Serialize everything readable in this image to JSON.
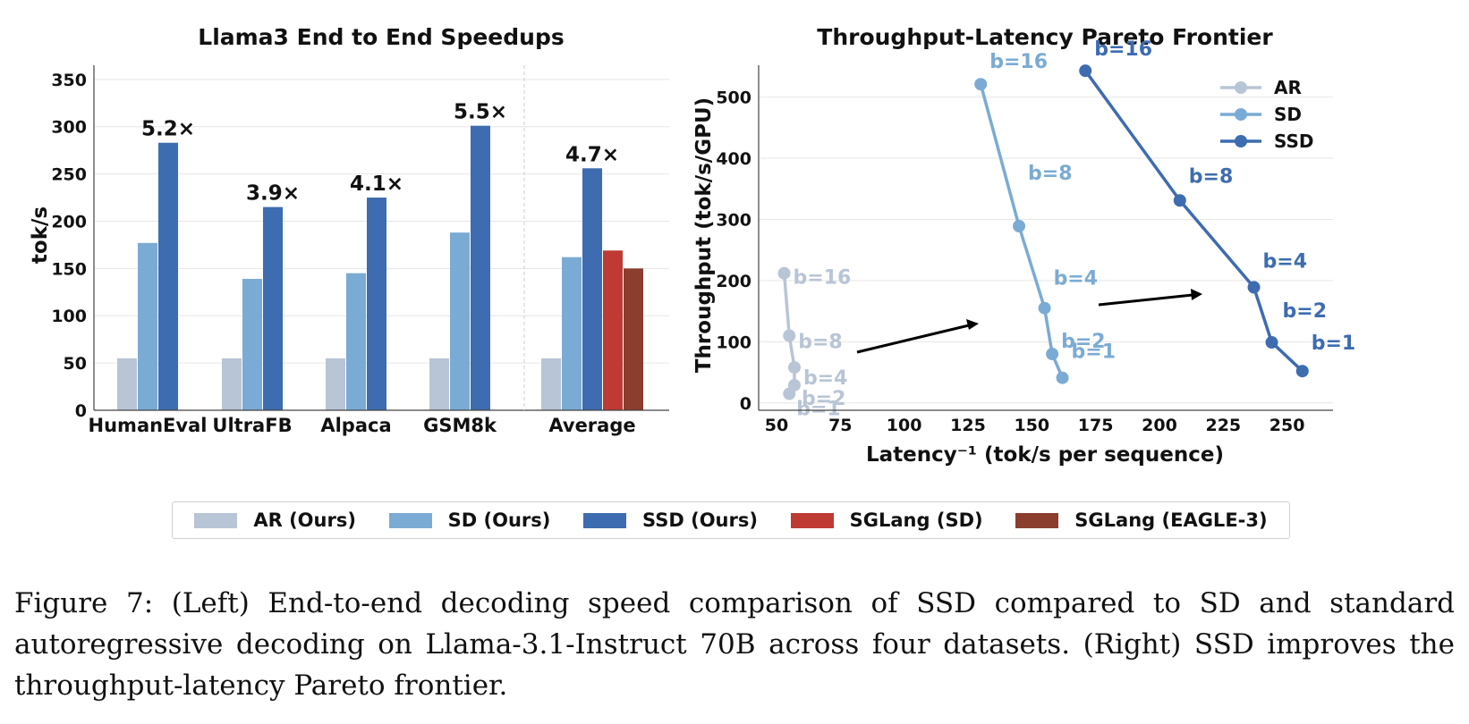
{
  "colors": {
    "ar": "#b8c5d6",
    "sd": "#7aabd4",
    "ssd": "#3d6cb0",
    "sglang_sd": "#bf3a33",
    "sglang_eagle3": "#8b3d2e",
    "arrow": "#000000",
    "grid": "#e6e6e6"
  },
  "chart_data": [
    {
      "type": "bar",
      "title": "Llama3 End to End Speedups",
      "xlabel": "",
      "ylabel": "tok/s",
      "ylim": [
        0,
        365
      ],
      "yticks": [
        0,
        50,
        100,
        150,
        200,
        250,
        300,
        350
      ],
      "categories": [
        "HumanEval",
        "UltraFB",
        "Alpaca",
        "GSM8k",
        "Average"
      ],
      "series": [
        {
          "name": "AR (Ours)",
          "color": "ar",
          "values": [
            55,
            55,
            55,
            55,
            55
          ]
        },
        {
          "name": "SD (Ours)",
          "color": "sd",
          "values": [
            177,
            139,
            145,
            188,
            162
          ]
        },
        {
          "name": "SSD (Ours)",
          "color": "ssd",
          "values": [
            283,
            215,
            225,
            301,
            256
          ]
        },
        {
          "name": "SGLang (SD)",
          "color": "sglang_sd",
          "values": [
            null,
            null,
            null,
            null,
            169
          ]
        },
        {
          "name": "SGLang (EAGLE-3)",
          "color": "sglang_eagle3",
          "values": [
            null,
            null,
            null,
            null,
            150
          ]
        }
      ],
      "annotations": [
        "5.2×",
        "3.9×",
        "4.1×",
        "5.5×",
        "4.7×"
      ],
      "grid": "horizontal",
      "legend": "bottom"
    },
    {
      "type": "line",
      "title": "Throughput-Latency Pareto Frontier",
      "xlabel": "Latency⁻¹ (tok/s per sequence)",
      "ylabel": "Throughput (tok/s/GPU)",
      "xlim": [
        43,
        268
      ],
      "ylim": [
        -12,
        552
      ],
      "xticks": [
        50,
        75,
        100,
        125,
        150,
        175,
        200,
        225,
        250
      ],
      "yticks": [
        0,
        100,
        200,
        300,
        400,
        500
      ],
      "series": [
        {
          "name": "AR",
          "color": "ar",
          "points": [
            {
              "x": 53,
              "y": 212,
              "label": "b=16"
            },
            {
              "x": 55,
              "y": 110,
              "label": "b=8"
            },
            {
              "x": 57,
              "y": 58,
              "label": "b=4"
            },
            {
              "x": 57,
              "y": 29,
              "label": "b=2"
            },
            {
              "x": 55,
              "y": 15,
              "label": "b=1"
            }
          ]
        },
        {
          "name": "SD",
          "color": "sd",
          "points": [
            {
              "x": 130,
              "y": 521,
              "label": "b=16"
            },
            {
              "x": 145,
              "y": 289,
              "label": "b=8"
            },
            {
              "x": 155,
              "y": 155,
              "label": "b=4"
            },
            {
              "x": 158,
              "y": 80,
              "label": "b=2"
            },
            {
              "x": 162,
              "y": 41,
              "label": "b=1"
            }
          ]
        },
        {
          "name": "SSD",
          "color": "ssd",
          "points": [
            {
              "x": 171,
              "y": 543,
              "label": "b=16"
            },
            {
              "x": 208,
              "y": 331,
              "label": "b=8"
            },
            {
              "x": 237,
              "y": 189,
              "label": "b=4"
            },
            {
              "x": 244,
              "y": 99,
              "label": "b=2"
            },
            {
              "x": 256,
              "y": 52,
              "label": "b=1"
            }
          ]
        }
      ],
      "grid": "horizontal",
      "legend": "top-right"
    }
  ],
  "legend": {
    "items": [
      {
        "label": "AR (Ours)",
        "color": "ar"
      },
      {
        "label": "SD (Ours)",
        "color": "sd"
      },
      {
        "label": "SSD (Ours)",
        "color": "ssd"
      },
      {
        "label": "SGLang (SD)",
        "color": "sglang_sd"
      },
      {
        "label": "SGLang (EAGLE-3)",
        "color": "sglang_eagle3"
      }
    ]
  },
  "caption": {
    "line1": "Figure 7: (Left) End-to-end decoding speed comparison of SSD compared to SD and standard",
    "rest": "autoregressive decoding on Llama-3.1-Instruct 70B across four datasets. (Right) SSD improves the throughput-latency Pareto frontier."
  }
}
